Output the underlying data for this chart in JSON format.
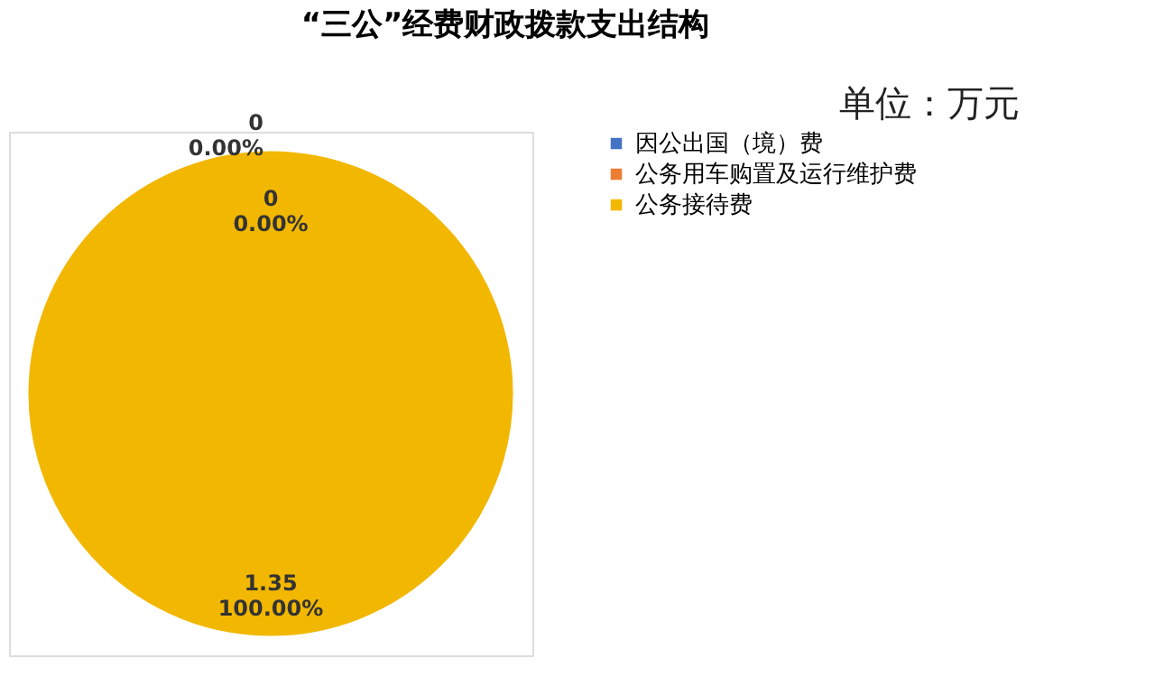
{
  "chart_data": {
    "type": "pie",
    "title": "“三公”经费财政拨款支出结构",
    "annotations": [
      "单位：万元"
    ],
    "categories": [
      "因公出国（境）费",
      "公务用车购置及运行维护费",
      "公务接待费"
    ],
    "values": [
      0,
      0,
      1.35
    ],
    "colors": [
      "#4472c4",
      "#ed7d31",
      "#f2b700"
    ],
    "value_labels": [
      "0\n0.00%",
      "0\n0.00%",
      "1.35\n100.00%"
    ],
    "legend": "right"
  }
}
